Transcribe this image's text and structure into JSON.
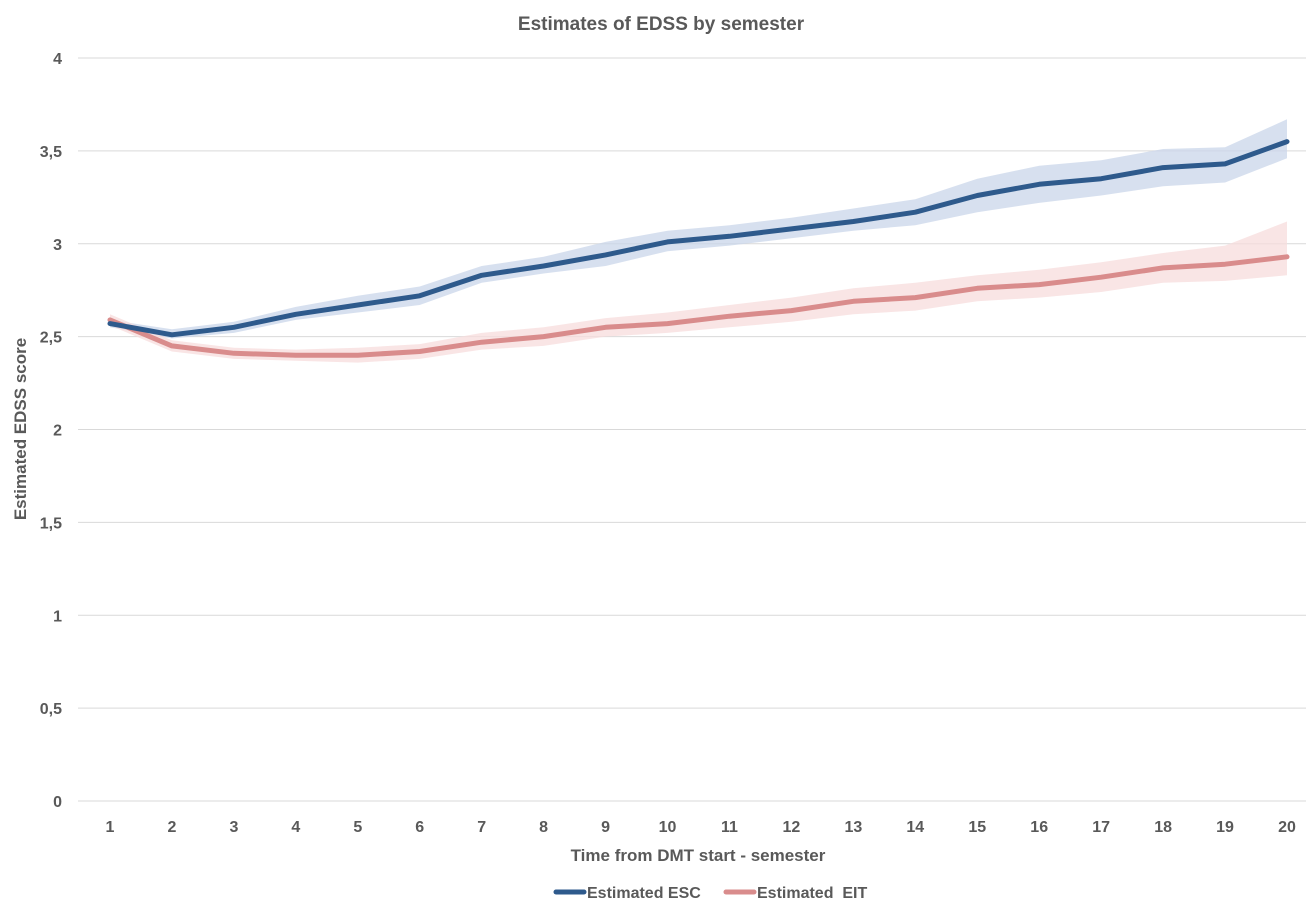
{
  "chart_data": {
    "type": "line",
    "title": "Estimates of EDSS by semester",
    "xlabel": "Time from DMT start - semester",
    "ylabel": "Estimated EDSS score",
    "x": [
      1,
      2,
      3,
      4,
      5,
      6,
      7,
      8,
      9,
      10,
      11,
      12,
      13,
      14,
      15,
      16,
      17,
      18,
      19,
      20
    ],
    "ylim": [
      0,
      4
    ],
    "yticks": [
      0,
      0.5,
      1,
      1.5,
      2,
      2.5,
      3,
      3.5,
      4
    ],
    "ytick_labels": [
      "0",
      "0,5",
      "1",
      "1,5",
      "2",
      "2,5",
      "3",
      "3,5",
      "4"
    ],
    "grid": true,
    "legend_position": "bottom",
    "series": [
      {
        "name": "Estimated ESC",
        "color": "#2e5a8c",
        "band_color": "#c9d6ea",
        "values": [
          2.57,
          2.51,
          2.55,
          2.62,
          2.67,
          2.72,
          2.83,
          2.88,
          2.94,
          3.01,
          3.04,
          3.08,
          3.12,
          3.17,
          3.26,
          3.32,
          3.35,
          3.41,
          3.43,
          3.55
        ],
        "lower": [
          2.55,
          2.49,
          2.52,
          2.59,
          2.63,
          2.67,
          2.79,
          2.84,
          2.88,
          2.96,
          2.99,
          3.03,
          3.07,
          3.1,
          3.17,
          3.22,
          3.26,
          3.31,
          3.33,
          3.46
        ],
        "upper": [
          2.59,
          2.54,
          2.58,
          2.66,
          2.72,
          2.77,
          2.88,
          2.93,
          3.01,
          3.07,
          3.1,
          3.14,
          3.19,
          3.24,
          3.35,
          3.42,
          3.45,
          3.51,
          3.52,
          3.67
        ]
      },
      {
        "name": "Estimated  EIT",
        "color": "#d98c8c",
        "band_color": "#f7dcdc",
        "values": [
          2.59,
          2.45,
          2.41,
          2.4,
          2.4,
          2.42,
          2.47,
          2.5,
          2.55,
          2.57,
          2.61,
          2.64,
          2.69,
          2.71,
          2.76,
          2.78,
          2.82,
          2.87,
          2.89,
          2.93
        ],
        "lower": [
          2.56,
          2.42,
          2.38,
          2.37,
          2.36,
          2.38,
          2.43,
          2.45,
          2.5,
          2.52,
          2.55,
          2.58,
          2.62,
          2.64,
          2.69,
          2.71,
          2.74,
          2.79,
          2.8,
          2.83
        ],
        "upper": [
          2.62,
          2.48,
          2.44,
          2.43,
          2.44,
          2.46,
          2.52,
          2.55,
          2.6,
          2.63,
          2.67,
          2.71,
          2.76,
          2.79,
          2.83,
          2.86,
          2.9,
          2.95,
          2.99,
          3.12
        ]
      }
    ]
  }
}
